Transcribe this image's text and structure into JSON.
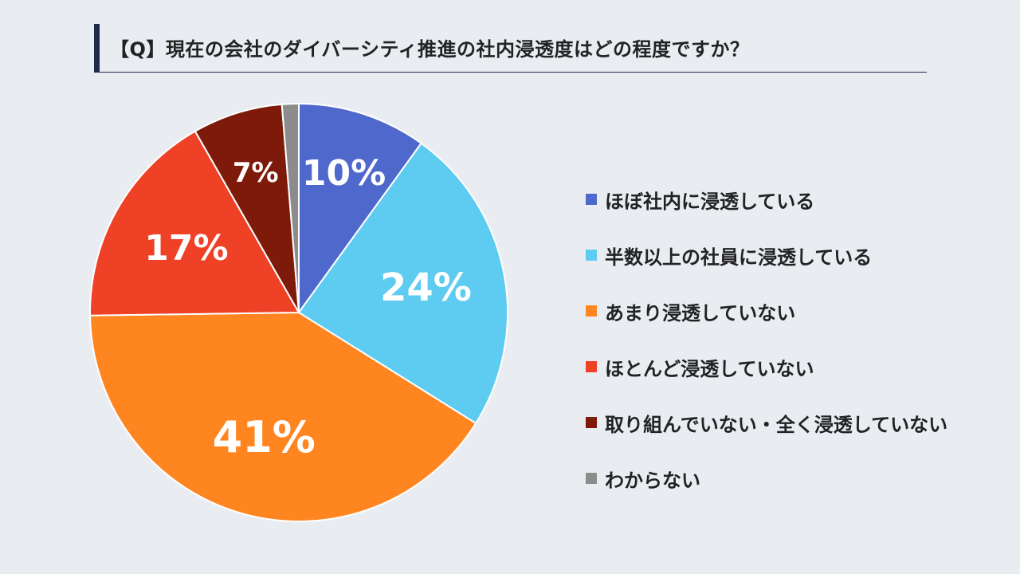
{
  "title": "【Q】現在の会社のダイバーシティ推進の社内浸透度はどの程度ですか？",
  "chart_data": {
    "type": "pie",
    "title": "【Q】現在の会社のダイバーシティ推進の社内浸透度はどの程度ですか？",
    "legend_position": "right",
    "start_angle": "top",
    "direction": "clockwise",
    "slices": [
      {
        "label": "ほぼ社内に浸透している",
        "value": 10,
        "display": "10%",
        "color": "#4f68cc"
      },
      {
        "label": "半数以上の社員に浸透している",
        "value": 24,
        "display": "24%",
        "color": "#5ecbf0"
      },
      {
        "label": "あまり浸透していない",
        "value": 41,
        "display": "41%",
        "color": "#ff8520"
      },
      {
        "label": "ほとんど浸透していない",
        "value": 17,
        "display": "17%",
        "color": "#ee4126"
      },
      {
        "label": "取り組んでいない・全く浸透していない",
        "value": 7,
        "display": "7%",
        "color": "#7d1a0a"
      },
      {
        "label": "わからない",
        "value": 1.3,
        "display": "",
        "color": "#8c8c8c"
      }
    ]
  }
}
